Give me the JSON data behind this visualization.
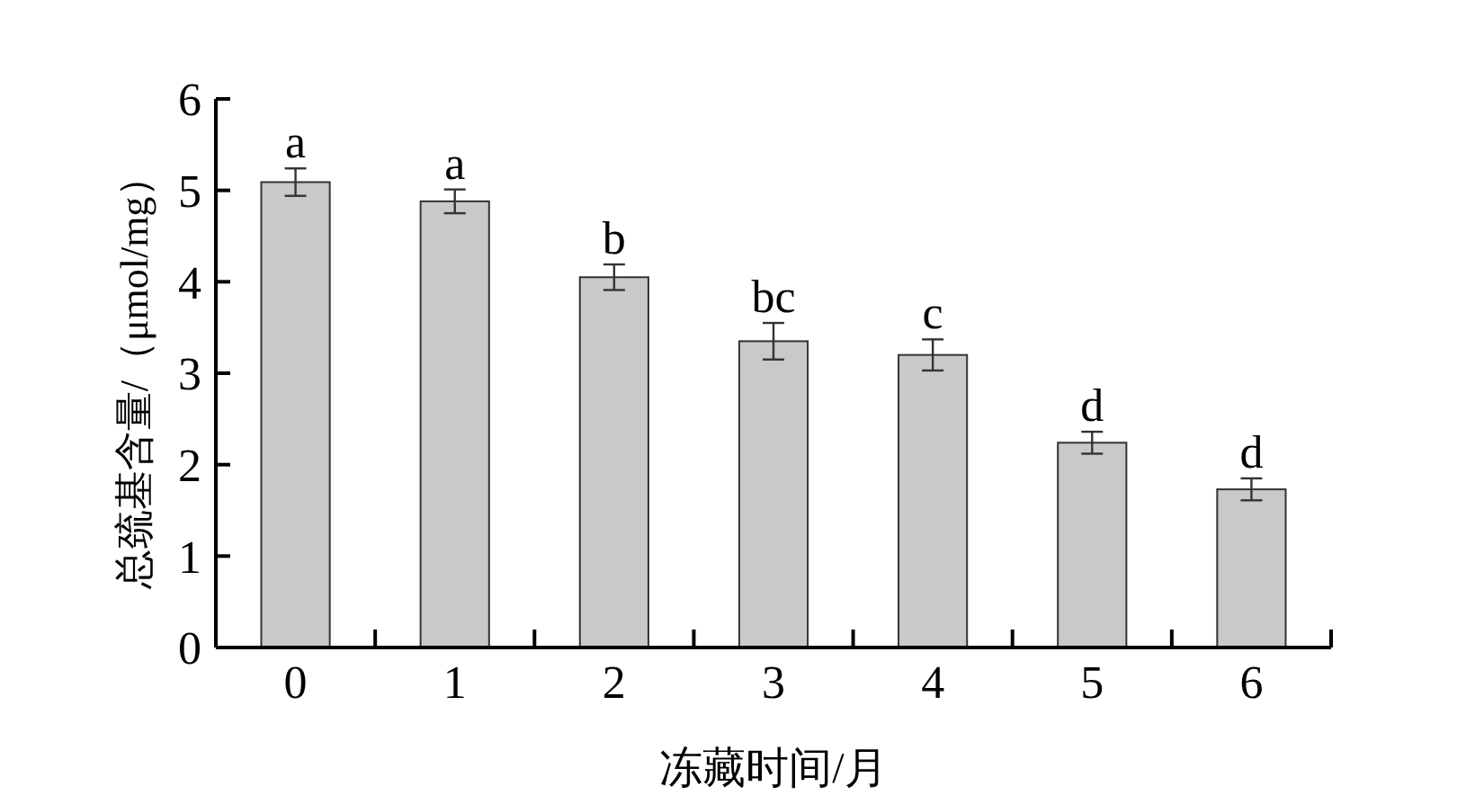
{
  "chart_data": {
    "type": "bar",
    "xlabel": "冻藏时间/月",
    "ylabel": "总巯基含量/（μmol/mg）",
    "categories": [
      "0",
      "1",
      "2",
      "3",
      "4",
      "5",
      "6"
    ],
    "values": [
      5.09,
      4.88,
      4.05,
      3.35,
      3.2,
      2.24,
      1.73
    ],
    "errors": [
      0.15,
      0.13,
      0.14,
      0.2,
      0.17,
      0.12,
      0.12
    ],
    "color": "#c8c9cb",
    "ylim": [
      0,
      6
    ],
    "yticks": [
      0,
      1,
      2,
      3,
      4,
      5,
      6
    ],
    "annotations": [
      {
        "text": "a",
        "x": "0",
        "y": 5.24
      },
      {
        "text": "a",
        "x": "1",
        "y": 5.01
      },
      {
        "text": "b",
        "x": "2",
        "y": 4.19
      },
      {
        "text": "bc",
        "x": "3",
        "y": 3.55
      },
      {
        "text": "c",
        "x": "4",
        "y": 3.37
      },
      {
        "text": "d",
        "x": "5",
        "y": 2.36
      },
      {
        "text": "d",
        "x": "6",
        "y": 1.85
      }
    ]
  }
}
